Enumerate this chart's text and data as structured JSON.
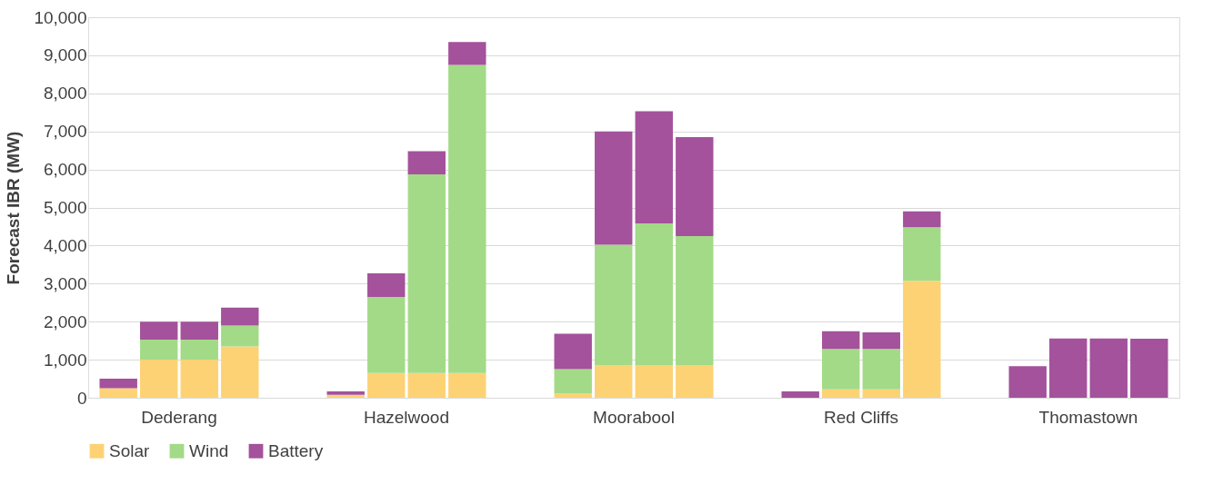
{
  "chart_data": {
    "type": "bar",
    "stacked": true,
    "ylabel": "Forecast IBR (MW)",
    "categories": [
      null,
      null,
      null,
      null,
      null,
      null,
      null,
      null,
      null,
      null,
      null,
      null,
      null,
      null,
      null,
      null,
      null,
      null,
      null,
      null
    ],
    "annotations": [
      "Dederang",
      "Hazelwood",
      "Moorabool",
      "Red Cliffs",
      "Thomastown"
    ],
    "series": [
      {
        "name": "Solar",
        "color": "#fdd274",
        "values": [
          250,
          1000,
          1000,
          1350,
          80,
          650,
          650,
          650,
          120,
          850,
          850,
          850,
          0,
          220,
          220,
          3070,
          0,
          0,
          0,
          0
        ]
      },
      {
        "name": "Wind",
        "color": "#a3da87",
        "values": [
          0,
          530,
          530,
          550,
          0,
          2000,
          5220,
          8100,
          630,
          3170,
          3730,
          3400,
          0,
          1060,
          1060,
          1410,
          0,
          0,
          0,
          0
        ]
      },
      {
        "name": "Battery",
        "color": "#a3529b",
        "values": [
          250,
          470,
          470,
          470,
          90,
          620,
          610,
          600,
          930,
          2980,
          2950,
          2600,
          170,
          470,
          440,
          420,
          830,
          1560,
          1560,
          1550
        ]
      }
    ],
    "ylim": [
      0,
      10000
    ],
    "yticks": [
      0,
      {
        "value": 1000,
        "label": "1,000"
      },
      {
        "value": 2000,
        "label": "2,000"
      },
      {
        "value": 3000,
        "label": "3,000"
      },
      {
        "value": 4000,
        "label": "4,000"
      },
      {
        "value": 5000,
        "label": "5,000"
      },
      {
        "value": 6000,
        "label": "6,000"
      },
      {
        "value": 7000,
        "label": "7,000"
      },
      {
        "value": 8000,
        "label": "8,000"
      },
      {
        "value": 9000,
        "label": "9,000"
      },
      {
        "value": 10000,
        "label": "10,000"
      }
    ],
    "grid": "y",
    "legend": "bottom"
  }
}
